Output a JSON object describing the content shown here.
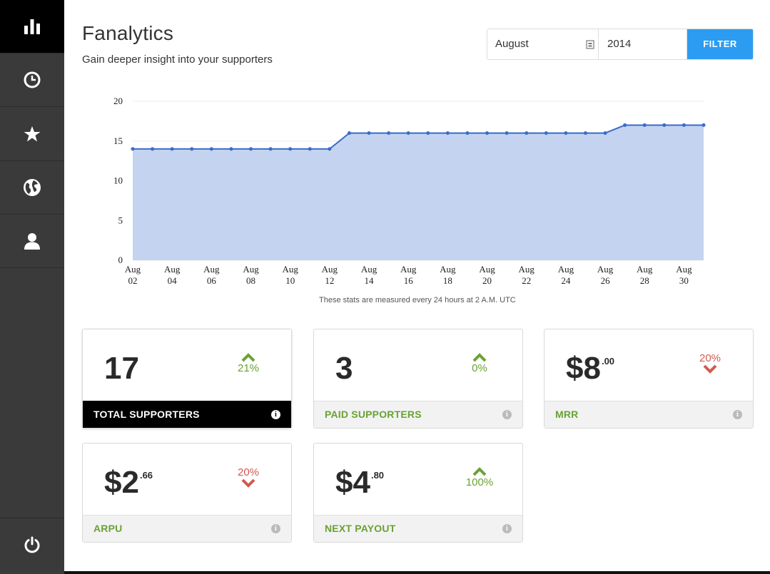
{
  "header": {
    "title": "Fanalytics",
    "subtitle": "Gain deeper insight into your supporters"
  },
  "sidebar": {
    "items": [
      {
        "icon": "bar-chart-icon",
        "active": true
      },
      {
        "icon": "clock-icon",
        "active": false
      },
      {
        "icon": "star-icon",
        "active": false
      },
      {
        "icon": "globe-icon",
        "active": false
      },
      {
        "icon": "user-icon",
        "active": false
      }
    ],
    "footer_icon": "power-icon"
  },
  "filter": {
    "month": "August",
    "year": "2014",
    "button_label": "FILTER",
    "month_icon": "calendar-icon"
  },
  "chart_note": "These stats are measured every 24 hours at 2 A.M. UTC",
  "colors": {
    "accent": "#2c9cf2",
    "line": "#3a6cc8",
    "area": "#c4d3ef",
    "positive": "#6aa234",
    "negative": "#d15a50",
    "sidebar": "#3a3a3a"
  },
  "chart_data": {
    "type": "area",
    "title": "",
    "xlabel": "",
    "ylabel": "",
    "ylim": [
      0,
      20
    ],
    "yticks": [
      "0",
      "5",
      "10",
      "15",
      "20"
    ],
    "xtick_labels": [
      [
        "Aug",
        "02"
      ],
      [
        "Aug",
        "04"
      ],
      [
        "Aug",
        "06"
      ],
      [
        "Aug",
        "08"
      ],
      [
        "Aug",
        "10"
      ],
      [
        "Aug",
        "12"
      ],
      [
        "Aug",
        "14"
      ],
      [
        "Aug",
        "16"
      ],
      [
        "Aug",
        "18"
      ],
      [
        "Aug",
        "20"
      ],
      [
        "Aug",
        "22"
      ],
      [
        "Aug",
        "24"
      ],
      [
        "Aug",
        "26"
      ],
      [
        "Aug",
        "28"
      ],
      [
        "Aug",
        "30"
      ]
    ],
    "x": [
      2,
      3,
      4,
      5,
      6,
      7,
      8,
      9,
      10,
      11,
      12,
      13,
      14,
      15,
      16,
      17,
      18,
      19,
      20,
      21,
      22,
      23,
      24,
      25,
      26,
      27,
      28,
      29,
      30,
      31
    ],
    "values": [
      14,
      14,
      14,
      14,
      14,
      14,
      14,
      14,
      14,
      14,
      14,
      16,
      16,
      16,
      16,
      16,
      16,
      16,
      16,
      16,
      16,
      16,
      16,
      16,
      16,
      17,
      17,
      17,
      17,
      17
    ],
    "grid": true
  },
  "stats": [
    {
      "value": "17",
      "cents": "",
      "change": "21%",
      "direction": "up",
      "label": "TOTAL SUPPORTERS",
      "active": true
    },
    {
      "value": "3",
      "cents": "",
      "change": "0%",
      "direction": "up",
      "label": "PAID SUPPORTERS",
      "active": false
    },
    {
      "value": "$8",
      "cents": ".00",
      "change": "20%",
      "direction": "down",
      "label": "MRR",
      "active": false
    },
    {
      "value": "$2",
      "cents": ".66",
      "change": "20%",
      "direction": "down",
      "label": "ARPU",
      "active": false
    },
    {
      "value": "$4",
      "cents": ".80",
      "change": "100%",
      "direction": "up",
      "label": "NEXT PAYOUT",
      "active": false
    }
  ]
}
